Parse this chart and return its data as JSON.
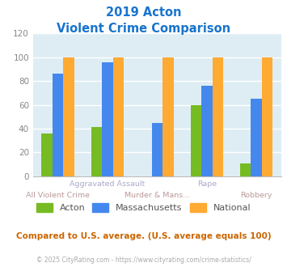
{
  "title_line1": "2019 Acton",
  "title_line2": "Violent Crime Comparison",
  "title_color": "#1874cd",
  "series": {
    "Acton": [
      36,
      41,
      0,
      60,
      11
    ],
    "Massachusetts": [
      86,
      96,
      45,
      76,
      65
    ],
    "National": [
      100,
      100,
      100,
      100,
      100
    ]
  },
  "groups": 5,
  "group_top_labels": [
    "",
    "Aggravated Assault",
    "",
    "Rape",
    ""
  ],
  "group_bot_labels": [
    "All Violent Crime",
    "",
    "Murder & Mans...",
    "",
    "Robbery"
  ],
  "colors": {
    "Acton": "#77bb22",
    "Massachusetts": "#4488ee",
    "National": "#ffaa33"
  },
  "ylim": [
    0,
    120
  ],
  "yticks": [
    0,
    20,
    40,
    60,
    80,
    100,
    120
  ],
  "bar_width": 0.22,
  "bg_color": "#deedf3",
  "grid_color": "#ffffff",
  "footnote": "Compared to U.S. average. (U.S. average equals 100)",
  "footnote_color": "#cc6600",
  "credit": "© 2025 CityRating.com - https://www.cityrating.com/crime-statistics/",
  "credit_color": "#aaaaaa",
  "legend_labels": [
    "Acton",
    "Massachusetts",
    "National"
  ],
  "top_label_color": "#aaaacc",
  "bot_label_color": "#bb9999"
}
